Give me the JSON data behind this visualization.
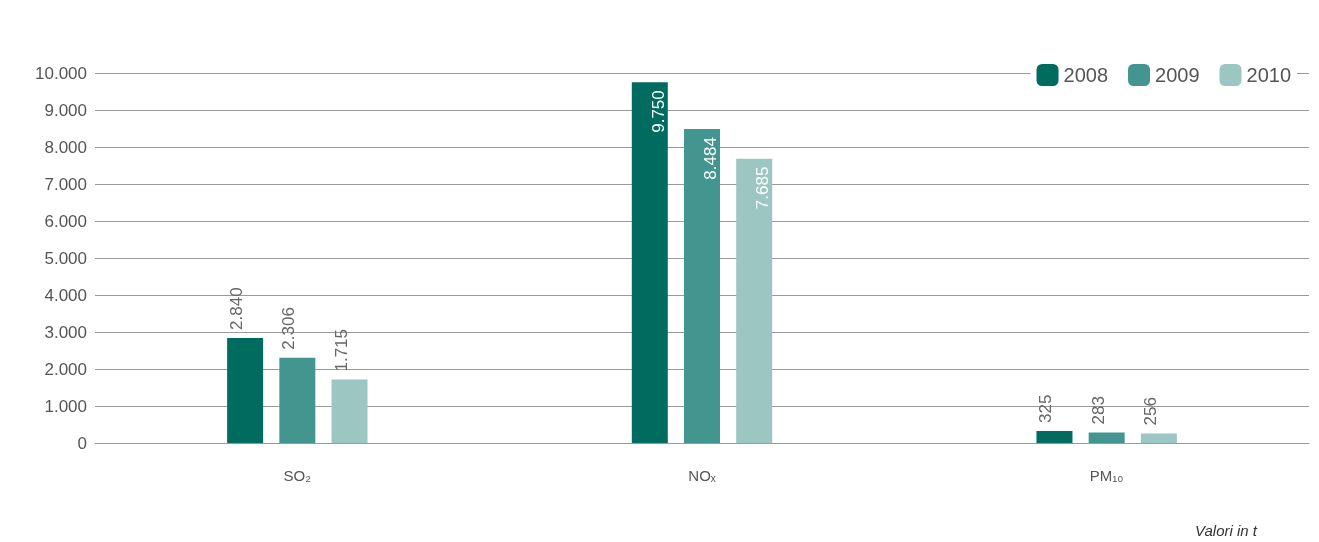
{
  "chart_data": {
    "type": "bar",
    "categories": [
      "SO₂",
      "NOₓ",
      "PM₁₀"
    ],
    "series": [
      {
        "name": "2008",
        "color": "#006b5f",
        "values": [
          2840,
          9750,
          325
        ],
        "value_labels": [
          "2.840",
          "9.750",
          "325"
        ]
      },
      {
        "name": "2009",
        "color": "#43968f",
        "values": [
          2306,
          8484,
          283
        ],
        "value_labels": [
          "2.306",
          "8.484",
          "283"
        ]
      },
      {
        "name": "2010",
        "color": "#9cc6c2",
        "values": [
          1715,
          7685,
          256
        ],
        "value_labels": [
          "1.715",
          "7.685",
          "256"
        ]
      }
    ],
    "ylim": [
      0,
      10000
    ],
    "yticks": [
      0,
      {
        "value": 1000,
        "label": "1.000"
      },
      {
        "value": 2000,
        "label": "2.000"
      },
      {
        "value": 3000,
        "label": "3.000"
      },
      {
        "value": 4000,
        "label": "4.000"
      },
      {
        "value": 5000,
        "label": "5.000"
      },
      {
        "value": 6000,
        "label": "6.000"
      },
      {
        "value": 7000,
        "label": "7.000"
      },
      {
        "value": 8000,
        "label": "8.000"
      },
      {
        "value": 9000,
        "label": "9.000"
      },
      {
        "value": 10000,
        "label": "10.000"
      }
    ],
    "grid": "y",
    "legend": "top right",
    "annotations": [
      "Valori in t"
    ]
  }
}
